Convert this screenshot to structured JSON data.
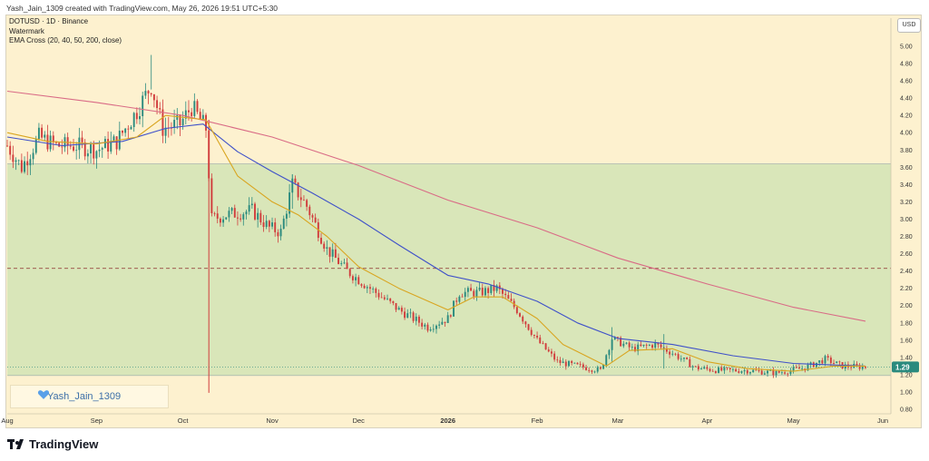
{
  "header": {
    "created_text": "Yash_Jain_1309 created with TradingView.com, May 26, 2026 19:51 UTC+5:30"
  },
  "legend": {
    "line1": "DOTUSD · 1D · Binance",
    "line2": "Watermark",
    "line3": "EMA Cross (20, 40, 50, 200, close)"
  },
  "currency_button": "USD",
  "watermark_badge": "Yash_Jain_1309",
  "brand": "TradingView",
  "colors": {
    "background": "#fdf1cf",
    "zone": "#d9e6b9",
    "ema_fast": "#d9a520",
    "ema_mid": "#3f51c9",
    "ema_long": "#d96b86",
    "up": "#2a8a7e",
    "down": "#d13c3c",
    "dashed": "#8b2d2d"
  },
  "chart_data": {
    "type": "candlestick",
    "symbol": "DOTUSD",
    "timeframe": "1D",
    "exchange": "Binance",
    "y_axis": {
      "ticks": [
        "0.80",
        "1.00",
        "1.20",
        "1.40",
        "1.60",
        "1.80",
        "2.00",
        "2.20",
        "2.40",
        "2.60",
        "2.80",
        "3.00",
        "3.20",
        "3.40",
        "3.60",
        "3.80",
        "4.00",
        "4.20",
        "4.40",
        "4.60",
        "4.80",
        "5.00"
      ],
      "min": 0.8,
      "max": 5.0
    },
    "x_axis": {
      "labels": [
        "Aug",
        "Sep",
        "Oct",
        "Nov",
        "Dec",
        "2026",
        "Feb",
        "Mar",
        "Apr",
        "May",
        "Jun"
      ],
      "start": "2025-08-01",
      "end": "2026-06-01"
    },
    "last_price": "1.29",
    "zone": {
      "top": 3.64,
      "bottom": 1.19
    },
    "dashed_levels": [
      2.43
    ],
    "dotted_levels": [
      1.29
    ],
    "price_path": [
      [
        "2025-08-01",
        3.85
      ],
      [
        "2025-08-06",
        3.6
      ],
      [
        "2025-08-12",
        3.95
      ],
      [
        "2025-08-18",
        3.85
      ],
      [
        "2025-08-25",
        3.85
      ],
      [
        "2025-09-01",
        3.8
      ],
      [
        "2025-09-08",
        3.9
      ],
      [
        "2025-09-15",
        4.25
      ],
      [
        "2025-09-20",
        4.55
      ],
      [
        "2025-09-24",
        4.05
      ],
      [
        "2025-09-30",
        4.1
      ],
      [
        "2025-10-04",
        4.3
      ],
      [
        "2025-10-09",
        4.05
      ],
      [
        "2025-10-11",
        3.0
      ],
      [
        "2025-10-16",
        3.05
      ],
      [
        "2025-10-25",
        3.1
      ],
      [
        "2025-10-31",
        2.9
      ],
      [
        "2025-11-04",
        2.85
      ],
      [
        "2025-11-08",
        3.4
      ],
      [
        "2025-11-13",
        3.15
      ],
      [
        "2025-11-20",
        2.65
      ],
      [
        "2025-11-27",
        2.4
      ],
      [
        "2025-12-05",
        2.2
      ],
      [
        "2025-12-15",
        1.95
      ],
      [
        "2025-12-25",
        1.75
      ],
      [
        "2026-01-01",
        1.85
      ],
      [
        "2026-01-05",
        2.15
      ],
      [
        "2026-01-12",
        2.15
      ],
      [
        "2026-01-18",
        2.2
      ],
      [
        "2026-01-25",
        1.95
      ],
      [
        "2026-02-01",
        1.6
      ],
      [
        "2026-02-08",
        1.35
      ],
      [
        "2026-02-15",
        1.3
      ],
      [
        "2026-02-23",
        1.25
      ],
      [
        "2026-02-27",
        1.62
      ],
      [
        "2026-03-06",
        1.5
      ],
      [
        "2026-03-14",
        1.55
      ],
      [
        "2026-03-20",
        1.45
      ],
      [
        "2026-03-28",
        1.28
      ],
      [
        "2026-04-05",
        1.25
      ],
      [
        "2026-04-15",
        1.25
      ],
      [
        "2026-04-25",
        1.22
      ],
      [
        "2026-05-05",
        1.28
      ],
      [
        "2026-05-12",
        1.38
      ],
      [
        "2026-05-18",
        1.3
      ],
      [
        "2026-05-26",
        1.29
      ]
    ],
    "ema_fast_path": [
      [
        "2025-08-01",
        4.0
      ],
      [
        "2025-08-15",
        3.9
      ],
      [
        "2025-09-01",
        3.87
      ],
      [
        "2025-09-15",
        3.95
      ],
      [
        "2025-09-25",
        4.2
      ],
      [
        "2025-10-09",
        4.15
      ],
      [
        "2025-10-20",
        3.5
      ],
      [
        "2025-11-01",
        3.2
      ],
      [
        "2025-11-10",
        3.05
      ],
      [
        "2025-11-20",
        2.8
      ],
      [
        "2025-12-01",
        2.45
      ],
      [
        "2025-12-15",
        2.2
      ],
      [
        "2026-01-01",
        1.95
      ],
      [
        "2026-01-10",
        2.1
      ],
      [
        "2026-01-20",
        2.1
      ],
      [
        "2026-02-01",
        1.85
      ],
      [
        "2026-02-10",
        1.55
      ],
      [
        "2026-02-25",
        1.3
      ],
      [
        "2026-03-05",
        1.48
      ],
      [
        "2026-03-20",
        1.5
      ],
      [
        "2026-04-01",
        1.35
      ],
      [
        "2026-04-15",
        1.27
      ],
      [
        "2026-05-01",
        1.24
      ],
      [
        "2026-05-15",
        1.3
      ],
      [
        "2026-05-26",
        1.3
      ]
    ],
    "ema_mid_path": [
      [
        "2025-08-01",
        3.95
      ],
      [
        "2025-08-20",
        3.85
      ],
      [
        "2025-09-10",
        3.9
      ],
      [
        "2025-09-25",
        4.05
      ],
      [
        "2025-10-08",
        4.1
      ],
      [
        "2025-10-20",
        3.78
      ],
      [
        "2025-11-01",
        3.55
      ],
      [
        "2025-11-15",
        3.3
      ],
      [
        "2025-12-01",
        3.0
      ],
      [
        "2025-12-15",
        2.7
      ],
      [
        "2026-01-01",
        2.35
      ],
      [
        "2026-01-15",
        2.25
      ],
      [
        "2026-02-01",
        2.05
      ],
      [
        "2026-02-15",
        1.8
      ],
      [
        "2026-03-01",
        1.62
      ],
      [
        "2026-03-20",
        1.55
      ],
      [
        "2026-04-10",
        1.42
      ],
      [
        "2026-05-01",
        1.33
      ],
      [
        "2026-05-26",
        1.3
      ]
    ],
    "ema_long_path": [
      [
        "2025-08-01",
        4.48
      ],
      [
        "2025-09-01",
        4.35
      ],
      [
        "2025-10-01",
        4.2
      ],
      [
        "2025-11-01",
        3.95
      ],
      [
        "2025-12-01",
        3.62
      ],
      [
        "2026-01-01",
        3.22
      ],
      [
        "2026-02-01",
        2.9
      ],
      [
        "2026-03-01",
        2.55
      ],
      [
        "2026-04-01",
        2.25
      ],
      [
        "2026-05-01",
        1.98
      ],
      [
        "2026-05-26",
        1.82
      ]
    ]
  }
}
